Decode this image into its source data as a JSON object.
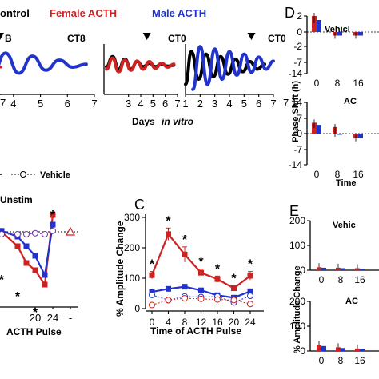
{
  "legend": {
    "control": "ontrol",
    "female": "Female ACTH",
    "male": "Male ACTH",
    "female_color": "#cc2222",
    "male_color": "#2233cc",
    "control_color": "#000000"
  },
  "panel_labels": {
    "c": "C",
    "d": "D",
    "e": "E"
  },
  "labels": {
    "b_fragment": "B",
    "days_in_vitro": "Days",
    "days_in_vitro_italic": "in vitro",
    "vehicle_legend": "Vehicle",
    "unstim": "Unstim",
    "acth_pulse_fragment": "ACTH Pulse",
    "dash": "-",
    "pulse_marker_icon": "triangle-down"
  },
  "chart_data": [
    {
      "type": "line",
      "title": "CT8",
      "xlabel": "Days in vitro",
      "x_ticks": [
        "4",
        "5",
        "6",
        "7"
      ],
      "pulse_day": 3.5,
      "series": [
        {
          "name": "Male ACTH",
          "values": [
            [
              1.2,
              0.1
            ],
            [
              1.7,
              0.95
            ],
            [
              2.2,
              0.3
            ],
            [
              2.7,
              0.9
            ],
            [
              3.2,
              0.35
            ],
            [
              3.7,
              0.82
            ],
            [
              4.2,
              0.42
            ],
            [
              4.7,
              0.76
            ],
            [
              5.2,
              0.48
            ],
            [
              5.7,
              0.68
            ],
            [
              6.2,
              0.54
            ],
            [
              6.7,
              0.6
            ]
          ]
        }
      ]
    },
    {
      "type": "line",
      "title": "CT0",
      "x_ticks": [
        "3",
        "4",
        "5",
        "6",
        "7"
      ],
      "pulse_day": 4.5,
      "series": [
        {
          "name": "Control",
          "values": [
            [
              1.2,
              0.55
            ],
            [
              1.7,
              0.75
            ],
            [
              2.2,
              0.5
            ],
            [
              2.7,
              0.7
            ],
            [
              3.2,
              0.5
            ],
            [
              3.7,
              0.65
            ],
            [
              4.2,
              0.55
            ],
            [
              4.7,
              0.62
            ],
            [
              5.2,
              0.55
            ],
            [
              5.7,
              0.6
            ],
            [
              6.2,
              0.56
            ],
            [
              6.7,
              0.58
            ]
          ]
        },
        {
          "name": "Female ACTH",
          "values": [
            [
              1.2,
              0.5
            ],
            [
              1.7,
              0.72
            ],
            [
              2.2,
              0.45
            ],
            [
              2.7,
              0.68
            ],
            [
              3.2,
              0.48
            ],
            [
              3.7,
              0.66
            ],
            [
              4.2,
              0.5
            ],
            [
              4.7,
              0.65
            ],
            [
              5.2,
              0.52
            ],
            [
              5.7,
              0.62
            ],
            [
              6.2,
              0.54
            ],
            [
              6.7,
              0.6
            ]
          ]
        }
      ]
    },
    {
      "type": "line",
      "title": "CT0",
      "x_ticks": [
        "1",
        "2",
        "3",
        "4",
        "5",
        "6",
        "7"
      ],
      "pulse_day": 5.5,
      "series": [
        {
          "name": "Control",
          "values": [
            [
              1.0,
              0.2
            ],
            [
              1.4,
              0.85
            ],
            [
              1.9,
              0.3
            ],
            [
              2.4,
              0.8
            ],
            [
              2.9,
              0.35
            ],
            [
              3.4,
              0.75
            ],
            [
              3.9,
              0.4
            ],
            [
              4.4,
              0.7
            ],
            [
              4.9,
              0.45
            ],
            [
              5.4,
              0.65
            ],
            [
              5.9,
              0.5
            ],
            [
              6.4,
              0.6
            ]
          ]
        },
        {
          "name": "Male ACTH",
          "values": [
            [
              1.5,
              0.1
            ],
            [
              2.0,
              0.95
            ],
            [
              2.5,
              0.2
            ],
            [
              3.0,
              0.9
            ],
            [
              3.5,
              0.3
            ],
            [
              4.0,
              0.85
            ],
            [
              4.5,
              0.38
            ],
            [
              5.0,
              0.8
            ],
            [
              5.5,
              0.44
            ],
            [
              6.0,
              0.74
            ],
            [
              6.5,
              0.5
            ],
            [
              7.0,
              0.66
            ]
          ]
        }
      ]
    },
    {
      "type": "line",
      "title": "",
      "xlabel": "ACTH Pulse",
      "x_ticks": [
        "20",
        "24",
        "-"
      ],
      "labels": [
        "Unstim"
      ],
      "series": [
        {
          "name": "Female ACTH",
          "values": [
            [
              4,
              150
            ],
            [
              8,
              120
            ],
            [
              12,
              85
            ],
            [
              16,
              70
            ],
            [
              20,
              40
            ],
            [
              24,
              185
            ]
          ]
        },
        {
          "name": "Male ACTH",
          "values": [
            [
              4,
              152
            ],
            [
              8,
              140
            ],
            [
              12,
              120
            ],
            [
              16,
              100
            ],
            [
              20,
              60
            ],
            [
              24,
              165
            ]
          ]
        },
        {
          "name": "Vehicle",
          "values": [
            [
              4,
              145
            ],
            [
              8,
              145
            ],
            [
              12,
              145
            ],
            [
              16,
              147
            ],
            [
              20,
              145
            ],
            [
              24,
              152
            ]
          ]
        }
      ],
      "unstim_value": 150,
      "asterisks_at": [
        8,
        16,
        20,
        24
      ]
    },
    {
      "type": "line",
      "title": "",
      "xlabel": "Time of ACTH Pulse",
      "ylabel": "% Amplitude Change",
      "ylim": [
        0,
        300
      ],
      "y_ticks": [
        "0",
        "100",
        "200",
        "300"
      ],
      "categories": [
        "0",
        "4",
        "8",
        "12",
        "16",
        "20",
        "24"
      ],
      "series": [
        {
          "name": "Female ACTH",
          "values": [
            110,
            245,
            178,
            118,
            97,
            67,
            108
          ],
          "errors": [
            12,
            20,
            25,
            12,
            10,
            8,
            14
          ]
        },
        {
          "name": "Male ACTH",
          "values": [
            55,
            65,
            72,
            60,
            44,
            36,
            57
          ],
          "errors": [
            6,
            6,
            6,
            5,
            5,
            4,
            6
          ]
        },
        {
          "name": "Vehicle (male)",
          "values": [
            45,
            28,
            40,
            38,
            40,
            20,
            42
          ],
          "errors": [
            6,
            4,
            5,
            4,
            5,
            4,
            6
          ]
        },
        {
          "name": "Vehicle (female)",
          "values": [
            12,
            28,
            34,
            32,
            30,
            28,
            15
          ],
          "errors": [
            3,
            4,
            4,
            3,
            3,
            3,
            4
          ]
        }
      ],
      "asterisks_at": [
        "0",
        "4",
        "8",
        "12",
        "16",
        "20",
        "24"
      ]
    },
    {
      "type": "bar",
      "title": "Vehicl",
      "ylabel": "Phase Shift (h)",
      "ylim": [
        -14,
        2
      ],
      "y_ticks": [
        "2",
        "0",
        "-2",
        "-7",
        "-14"
      ],
      "categories": [
        "0",
        "8",
        "16"
      ],
      "series": [
        {
          "name": "Female ACTH",
          "values": [
            2,
            -0.5,
            -0.5
          ]
        },
        {
          "name": "Male ACTH",
          "values": [
            1.5,
            -0.5,
            -0.5
          ]
        }
      ]
    },
    {
      "type": "bar",
      "title": "AC",
      "xlabel": "Time",
      "ylim": [
        -14,
        7
      ],
      "y_ticks": [
        "14",
        "7",
        "0",
        "-7",
        "-14"
      ],
      "categories": [
        "0",
        "8",
        "16"
      ],
      "series": [
        {
          "name": "Female ACTH",
          "values": [
            5,
            3,
            -2
          ]
        },
        {
          "name": "Male ACTH",
          "values": [
            4,
            0,
            -2
          ]
        }
      ]
    },
    {
      "type": "bar",
      "title": "Vehic",
      "ylabel": "% Amplitude Change",
      "ylim": [
        0,
        200
      ],
      "y_ticks": [
        "200",
        "100",
        "0"
      ],
      "categories": [
        "0",
        "8",
        "16"
      ],
      "series": [
        {
          "name": "Female ACTH",
          "values": [
            12,
            10,
            8
          ]
        },
        {
          "name": "Male ACTH",
          "values": [
            10,
            8,
            6
          ]
        }
      ]
    },
    {
      "type": "bar",
      "title": "AC",
      "ylim": [
        0,
        200
      ],
      "y_ticks": [
        "200",
        "100",
        "0"
      ],
      "categories": [
        "0",
        "8",
        "16"
      ],
      "series": [
        {
          "name": "Female ACTH",
          "values": [
            25,
            15,
            10
          ]
        },
        {
          "name": "Male ACTH",
          "values": [
            20,
            12,
            8
          ]
        }
      ]
    }
  ]
}
